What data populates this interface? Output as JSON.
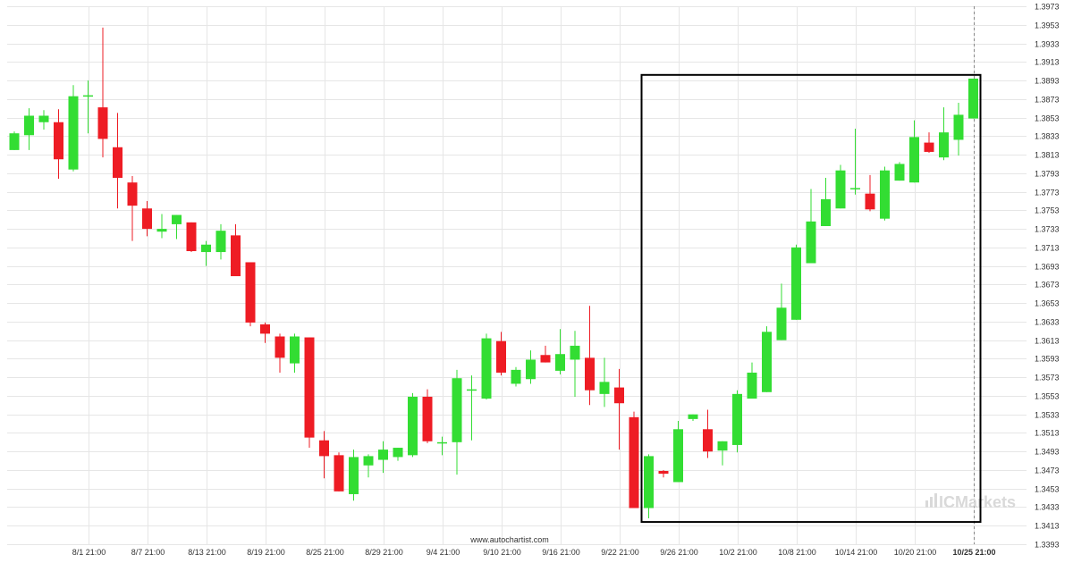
{
  "chart_data": {
    "type": "candlestick",
    "title": "",
    "xlabel": "",
    "ylabel": "",
    "ylim": [
      1.3393,
      1.3973
    ],
    "grid": true,
    "y_ticks": [
      "1.3393",
      "1.3413",
      "1.3433",
      "1.3453",
      "1.3473",
      "1.3493",
      "1.3513",
      "1.3533",
      "1.3553",
      "1.3573",
      "1.3593",
      "1.3613",
      "1.3633",
      "1.3653",
      "1.3673",
      "1.3693",
      "1.3713",
      "1.3733",
      "1.3753",
      "1.3773",
      "1.3793",
      "1.3813",
      "1.3833",
      "1.3853",
      "1.3873",
      "1.3893",
      "1.3913",
      "1.3933",
      "1.3953",
      "1.3973"
    ],
    "x_ticks": [
      {
        "label": "8/1 21:00",
        "index": 5
      },
      {
        "label": "8/7 21:00",
        "index": 9
      },
      {
        "label": "8/13 21:00",
        "index": 13
      },
      {
        "label": "8/19 21:00",
        "index": 17
      },
      {
        "label": "8/25 21:00",
        "index": 21
      },
      {
        "label": "8/29 21:00",
        "index": 25
      },
      {
        "label": "9/4 21:00",
        "index": 29
      },
      {
        "label": "9/10 21:00",
        "index": 33
      },
      {
        "label": "9/16 21:00",
        "index": 37
      },
      {
        "label": "9/22 21:00",
        "index": 41
      },
      {
        "label": "9/26 21:00",
        "index": 45
      },
      {
        "label": "10/2 21:00",
        "index": 49
      },
      {
        "label": "10/8 21:00",
        "index": 53
      },
      {
        "label": "10/14 21:00",
        "index": 57
      },
      {
        "label": "10/20 21:00",
        "index": 61
      },
      {
        "label": "10/25 21:00",
        "index": 65,
        "bold": true
      }
    ],
    "candles": [
      {
        "o": 1.3818,
        "h": 1.3838,
        "l": 1.3818,
        "c": 1.3836
      },
      {
        "o": 1.3834,
        "h": 1.3863,
        "l": 1.3818,
        "c": 1.3855
      },
      {
        "o": 1.3848,
        "h": 1.3861,
        "l": 1.384,
        "c": 1.3855
      },
      {
        "o": 1.3848,
        "h": 1.3862,
        "l": 1.3787,
        "c": 1.3808
      },
      {
        "o": 1.3797,
        "h": 1.3888,
        "l": 1.3795,
        "c": 1.3876
      },
      {
        "o": 1.3877,
        "h": 1.3893,
        "l": 1.3836,
        "c": 1.3877
      },
      {
        "o": 1.3864,
        "h": 1.395,
        "l": 1.381,
        "c": 1.383
      },
      {
        "o": 1.3821,
        "h": 1.3858,
        "l": 1.3755,
        "c": 1.3788
      },
      {
        "o": 1.3783,
        "h": 1.379,
        "l": 1.372,
        "c": 1.3758
      },
      {
        "o": 1.3755,
        "h": 1.3763,
        "l": 1.3725,
        "c": 1.3733
      },
      {
        "o": 1.373,
        "h": 1.3749,
        "l": 1.3723,
        "c": 1.3733
      },
      {
        "o": 1.3738,
        "h": 1.3748,
        "l": 1.3722,
        "c": 1.3748
      },
      {
        "o": 1.374,
        "h": 1.374,
        "l": 1.3708,
        "c": 1.3709
      },
      {
        "o": 1.3708,
        "h": 1.372,
        "l": 1.3693,
        "c": 1.3716
      },
      {
        "o": 1.3708,
        "h": 1.3738,
        "l": 1.37,
        "c": 1.3731
      },
      {
        "o": 1.3726,
        "h": 1.3738,
        "l": 1.3682,
        "c": 1.3682
      },
      {
        "o": 1.3697,
        "h": 1.3697,
        "l": 1.3628,
        "c": 1.3632
      },
      {
        "o": 1.363,
        "h": 1.3632,
        "l": 1.361,
        "c": 1.362
      },
      {
        "o": 1.3617,
        "h": 1.362,
        "l": 1.3578,
        "c": 1.3594
      },
      {
        "o": 1.3588,
        "h": 1.362,
        "l": 1.3578,
        "c": 1.3617
      },
      {
        "o": 1.3616,
        "h": 1.3616,
        "l": 1.3497,
        "c": 1.3508
      },
      {
        "o": 1.3505,
        "h": 1.3515,
        "l": 1.3464,
        "c": 1.3488
      },
      {
        "o": 1.3489,
        "h": 1.3492,
        "l": 1.345,
        "c": 1.345
      },
      {
        "o": 1.3447,
        "h": 1.3495,
        "l": 1.344,
        "c": 1.3487
      },
      {
        "o": 1.3478,
        "h": 1.349,
        "l": 1.3465,
        "c": 1.3488
      },
      {
        "o": 1.3484,
        "h": 1.3504,
        "l": 1.347,
        "c": 1.3495
      },
      {
        "o": 1.3487,
        "h": 1.3497,
        "l": 1.3483,
        "c": 1.3497
      },
      {
        "o": 1.3489,
        "h": 1.3556,
        "l": 1.3487,
        "c": 1.3552
      },
      {
        "o": 1.3552,
        "h": 1.356,
        "l": 1.3502,
        "c": 1.3504
      },
      {
        "o": 1.3503,
        "h": 1.3509,
        "l": 1.3489,
        "c": 1.3503
      },
      {
        "o": 1.3503,
        "h": 1.3581,
        "l": 1.3468,
        "c": 1.3572
      },
      {
        "o": 1.356,
        "h": 1.3575,
        "l": 1.3505,
        "c": 1.356
      },
      {
        "o": 1.355,
        "h": 1.362,
        "l": 1.3549,
        "c": 1.3615
      },
      {
        "o": 1.3612,
        "h": 1.3622,
        "l": 1.3575,
        "c": 1.3578
      },
      {
        "o": 1.3566,
        "h": 1.3584,
        "l": 1.3563,
        "c": 1.3581
      },
      {
        "o": 1.3571,
        "h": 1.3602,
        "l": 1.3566,
        "c": 1.3592
      },
      {
        "o": 1.3597,
        "h": 1.3607,
        "l": 1.3589,
        "c": 1.3589
      },
      {
        "o": 1.358,
        "h": 1.3625,
        "l": 1.3576,
        "c": 1.3598
      },
      {
        "o": 1.3592,
        "h": 1.3623,
        "l": 1.3552,
        "c": 1.3607
      },
      {
        "o": 1.3594,
        "h": 1.365,
        "l": 1.3543,
        "c": 1.3559
      },
      {
        "o": 1.3555,
        "h": 1.3594,
        "l": 1.3541,
        "c": 1.3568
      },
      {
        "o": 1.3562,
        "h": 1.3582,
        "l": 1.3495,
        "c": 1.3545
      },
      {
        "o": 1.353,
        "h": 1.3536,
        "l": 1.3432,
        "c": 1.3432
      },
      {
        "o": 1.3432,
        "h": 1.349,
        "l": 1.3421,
        "c": 1.3488
      },
      {
        "o": 1.3472,
        "h": 1.3473,
        "l": 1.3465,
        "c": 1.3469
      },
      {
        "o": 1.346,
        "h": 1.3526,
        "l": 1.346,
        "c": 1.3517
      },
      {
        "o": 1.3528,
        "h": 1.3533,
        "l": 1.3526,
        "c": 1.3533
      },
      {
        "o": 1.3517,
        "h": 1.3538,
        "l": 1.3486,
        "c": 1.3493
      },
      {
        "o": 1.3494,
        "h": 1.3504,
        "l": 1.3478,
        "c": 1.3504
      },
      {
        "o": 1.35,
        "h": 1.3559,
        "l": 1.3492,
        "c": 1.3555
      },
      {
        "o": 1.355,
        "h": 1.3589,
        "l": 1.355,
        "c": 1.3578
      },
      {
        "o": 1.3557,
        "h": 1.3628,
        "l": 1.3557,
        "c": 1.3622
      },
      {
        "o": 1.3613,
        "h": 1.3674,
        "l": 1.3613,
        "c": 1.3648
      },
      {
        "o": 1.3635,
        "h": 1.3716,
        "l": 1.3635,
        "c": 1.3713
      },
      {
        "o": 1.3696,
        "h": 1.3776,
        "l": 1.3696,
        "c": 1.3741
      },
      {
        "o": 1.3736,
        "h": 1.3788,
        "l": 1.3736,
        "c": 1.3765
      },
      {
        "o": 1.3755,
        "h": 1.3802,
        "l": 1.3755,
        "c": 1.3796
      },
      {
        "o": 1.3777,
        "h": 1.3841,
        "l": 1.377,
        "c": 1.3777
      },
      {
        "o": 1.3771,
        "h": 1.3791,
        "l": 1.3752,
        "c": 1.3754
      },
      {
        "o": 1.3744,
        "h": 1.38,
        "l": 1.3742,
        "c": 1.3796
      },
      {
        "o": 1.3785,
        "h": 1.3805,
        "l": 1.3785,
        "c": 1.3803
      },
      {
        "o": 1.3783,
        "h": 1.385,
        "l": 1.3783,
        "c": 1.3832
      },
      {
        "o": 1.3826,
        "h": 1.3837,
        "l": 1.3815,
        "c": 1.3816
      },
      {
        "o": 1.381,
        "h": 1.3864,
        "l": 1.3807,
        "c": 1.3837
      },
      {
        "o": 1.3829,
        "h": 1.3869,
        "l": 1.3812,
        "c": 1.3856
      },
      {
        "o": 1.3852,
        "h": 1.3895,
        "l": 1.3852,
        "c": 1.3895
      }
    ],
    "highlight_box": {
      "start_index": 43,
      "end_index": 65,
      "ymin": 1.3417,
      "ymax": 1.3899
    },
    "current_marker_index": 65,
    "bull_color": "#33dd33",
    "bear_color": "#ee1c24",
    "grid_color": "#e6e6e6",
    "box_color": "#000000"
  },
  "footer": {
    "source": "www.autochartist.com"
  },
  "watermark": {
    "brand": "ICMarkets"
  }
}
